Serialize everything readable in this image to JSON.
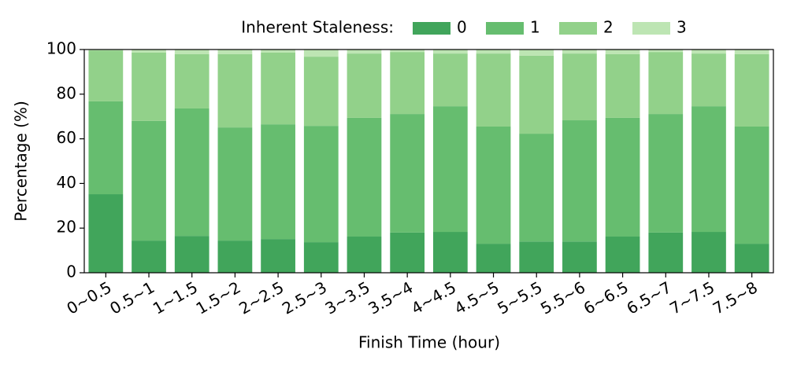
{
  "chart_data": {
    "type": "stacked_bar",
    "legend_title": "Inherent Staleness:",
    "x_label": "Finish Time (hour)",
    "y_label": "Percentage (%)",
    "categories": [
      "0~0.5",
      "0.5~1",
      "1~1.5",
      "1.5~2",
      "2~2.5",
      "2.5~3",
      "3~3.5",
      "3.5~4",
      "4~4.5",
      "4.5~5",
      "5~5.5",
      "5.5~6",
      "6~6.5",
      "6.5~7",
      "7~7.5",
      "7.5~8"
    ],
    "series": [
      {
        "name": "0",
        "color": "#41a55b",
        "values": [
          35.2,
          14.4,
          16.5,
          14.4,
          15.1,
          13.7,
          16.2,
          18.0,
          18.3,
          13.0,
          14.0,
          14.0,
          16.2,
          18.0,
          18.3,
          13.0
        ]
      },
      {
        "name": "1",
        "color": "#66bd6f",
        "values": [
          41.6,
          53.6,
          57.1,
          50.7,
          51.4,
          52.1,
          53.2,
          53.1,
          56.3,
          52.5,
          48.3,
          54.3,
          53.2,
          53.1,
          56.3,
          52.5
        ]
      },
      {
        "name": "2",
        "color": "#92d18a",
        "values": [
          22.8,
          30.6,
          24.3,
          32.8,
          32.1,
          31.0,
          28.8,
          27.8,
          23.6,
          32.7,
          34.9,
          29.9,
          28.5,
          27.8,
          23.6,
          32.4
        ]
      },
      {
        "name": "3",
        "color": "#bde5b3",
        "values": [
          0.4,
          1.4,
          2.1,
          2.1,
          1.4,
          3.2,
          1.8,
          1.1,
          1.8,
          1.8,
          2.8,
          1.8,
          2.1,
          1.1,
          1.8,
          2.1
        ]
      }
    ],
    "ylim": [
      0,
      100
    ],
    "yticks": [
      0,
      20,
      40,
      60,
      80,
      100
    ]
  }
}
